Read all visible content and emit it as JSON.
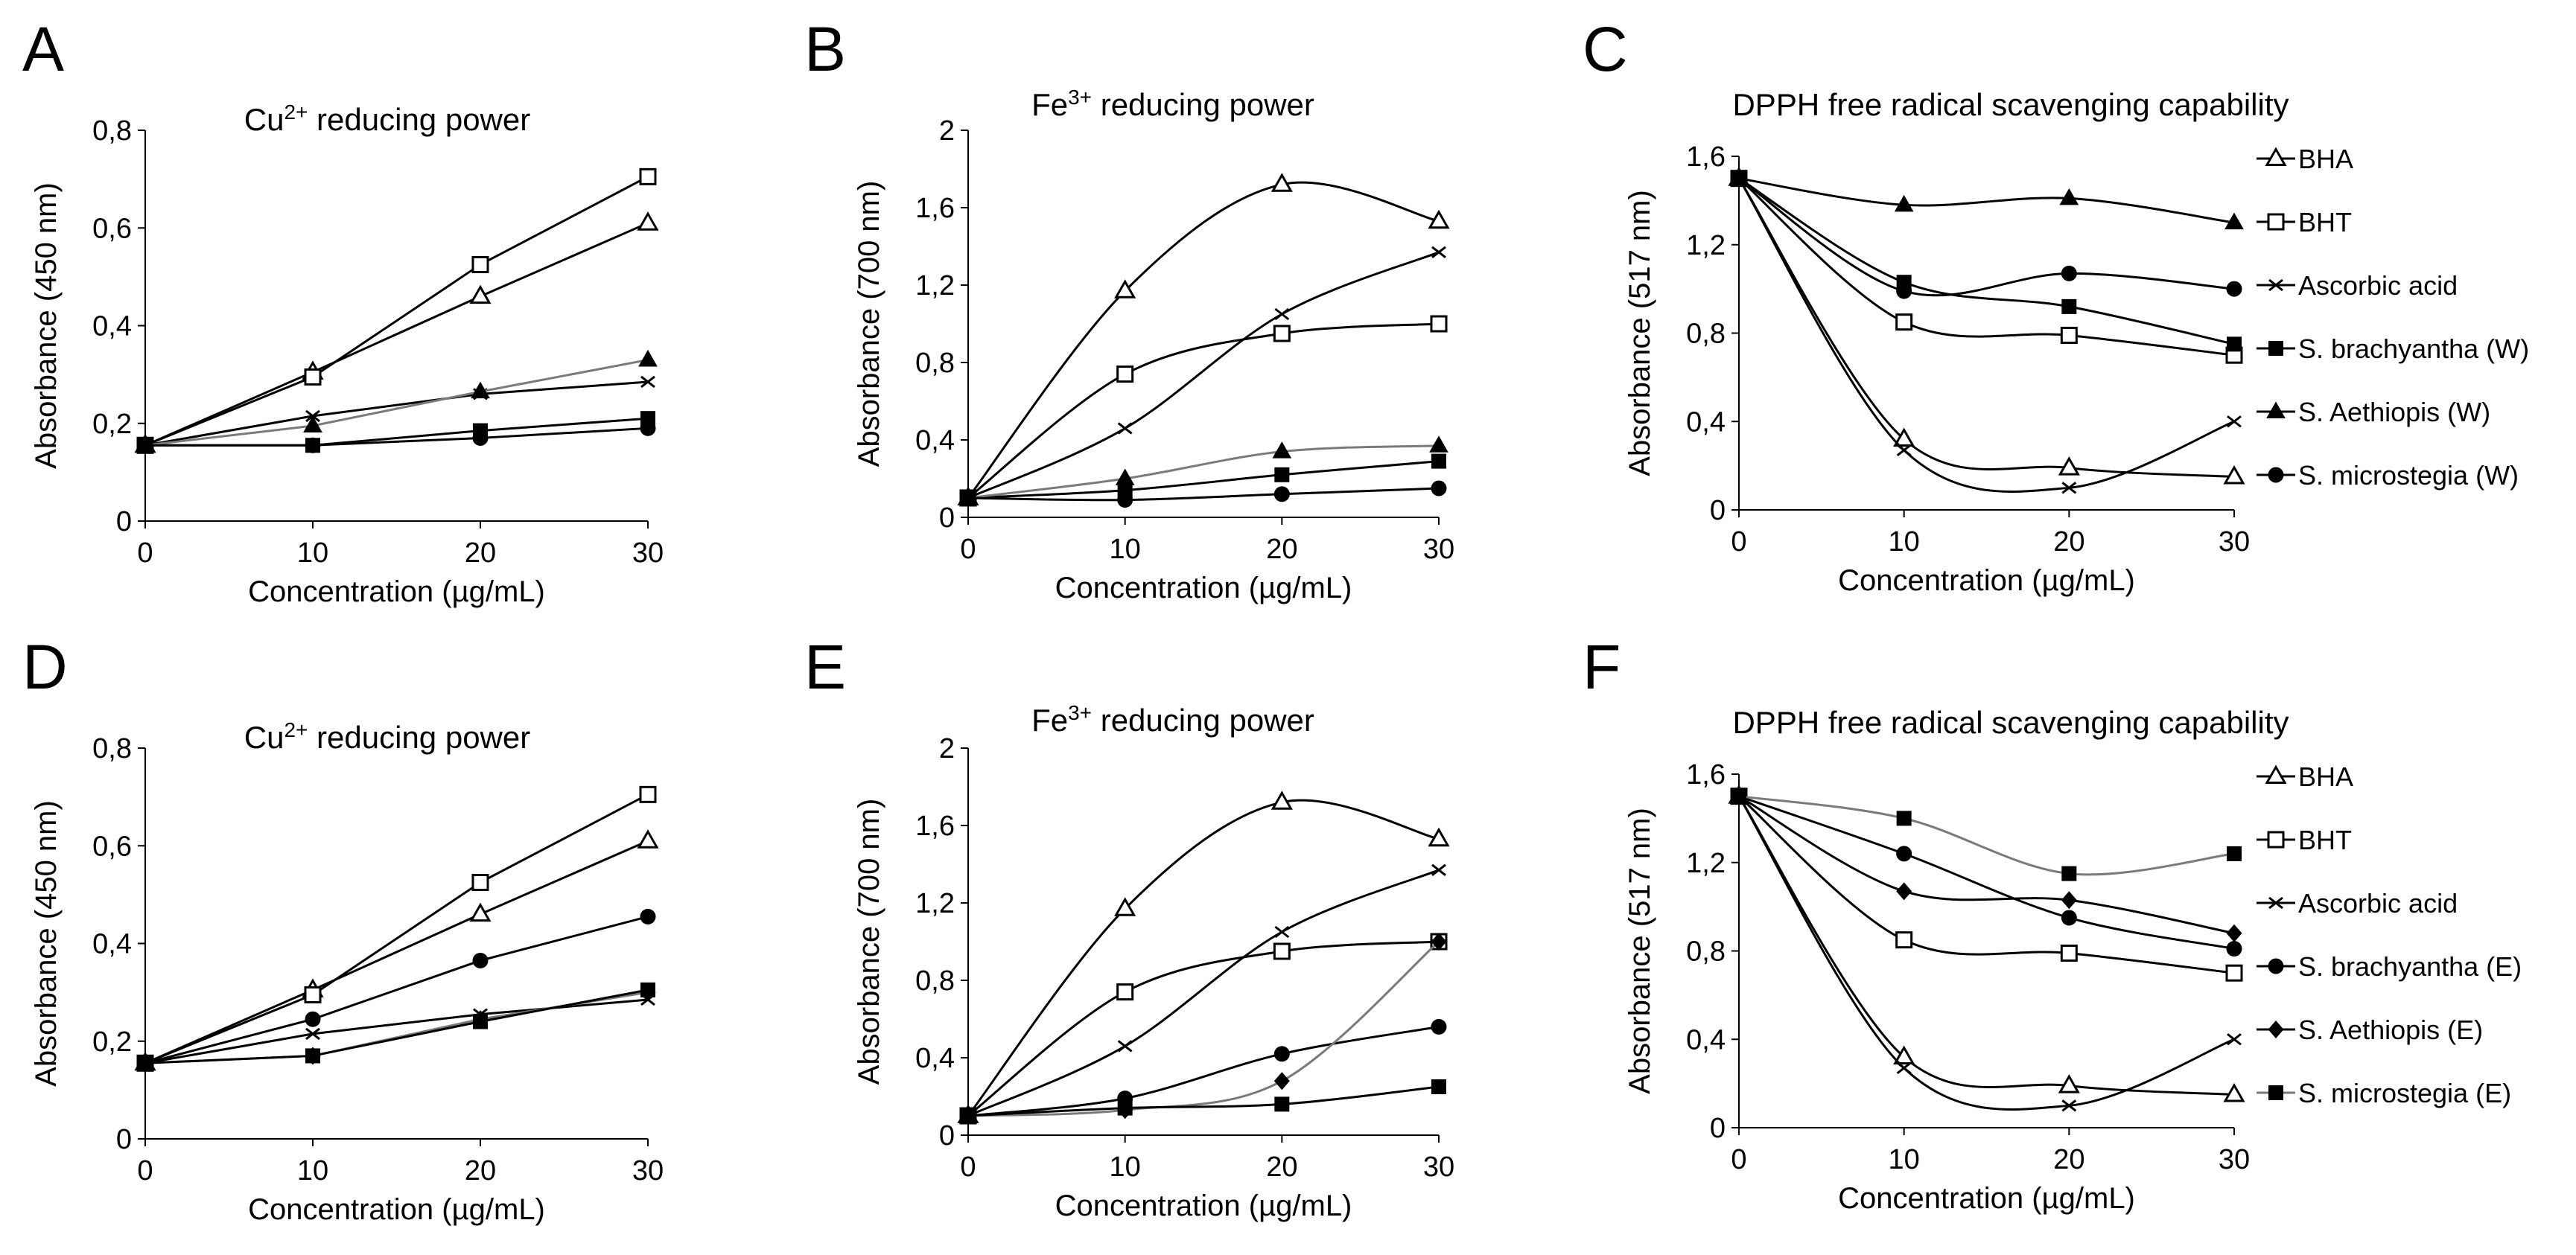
{
  "figure": {
    "background": "#ffffff",
    "line_color": "#000000",
    "light_line_color": "#7a7a7a"
  },
  "chart_data": [
    {
      "panel": "A",
      "type": "line",
      "title": {
        "base": "Cu",
        "sup": "2+",
        "rest": " reducing power"
      },
      "xlabel": "Concentration (µg/mL)",
      "ylabel": "Absorbance (450 nm)",
      "x": [
        0,
        10,
        20,
        30
      ],
      "xlim": [
        0,
        30
      ],
      "ylim": [
        0,
        0.8
      ],
      "xticks": [
        0,
        10,
        20,
        30
      ],
      "xtick_labels": [
        "0",
        "10",
        "20",
        "30"
      ],
      "yticks": [
        0,
        0.2,
        0.4,
        0.6,
        0.8
      ],
      "ytick_labels": [
        "0",
        "0,2",
        "0,4",
        "0,6",
        "0,8"
      ],
      "legend": false,
      "series": [
        {
          "name": "BHA",
          "marker": "triangle-open",
          "color": "#000000",
          "curve": "linear",
          "values": [
            0.155,
            0.305,
            0.46,
            0.61
          ]
        },
        {
          "name": "BHT",
          "marker": "square-open",
          "color": "#000000",
          "curve": "linear",
          "values": [
            0.155,
            0.295,
            0.525,
            0.705
          ]
        },
        {
          "name": "Ascorbic acid",
          "marker": "x",
          "color": "#000000",
          "curve": "linear",
          "values": [
            0.155,
            0.215,
            0.26,
            0.285
          ]
        },
        {
          "name": "S. brachyantha (W)",
          "marker": "square-filled",
          "color": "#000000",
          "curve": "linear",
          "values": [
            0.155,
            0.155,
            0.185,
            0.21
          ]
        },
        {
          "name": "S. Aethiopis (W)",
          "marker": "triangle-filled",
          "color": "#7a7a7a",
          "curve": "linear",
          "values": [
            0.155,
            0.195,
            0.265,
            0.33
          ]
        },
        {
          "name": "S. microstegia (W)",
          "marker": "circle-filled",
          "color": "#000000",
          "curve": "linear",
          "values": [
            0.155,
            0.155,
            0.17,
            0.19
          ]
        }
      ]
    },
    {
      "panel": "B",
      "type": "line",
      "title": {
        "base": "Fe",
        "sup": "3+",
        "rest": " reducing power"
      },
      "xlabel": "Concentration (µg/mL)",
      "ylabel": "Absorbance (700 nm)",
      "x": [
        0,
        10,
        20,
        30
      ],
      "xlim": [
        0,
        30
      ],
      "ylim": [
        0,
        2
      ],
      "xticks": [
        0,
        10,
        20,
        30
      ],
      "xtick_labels": [
        "0",
        "10",
        "20",
        "30"
      ],
      "yticks": [
        0,
        0.4,
        0.8,
        1.2,
        1.6,
        2
      ],
      "ytick_labels": [
        "0",
        "0,4",
        "0,8",
        "1,2",
        "1,6",
        "2"
      ],
      "legend": false,
      "series": [
        {
          "name": "BHA",
          "marker": "triangle-open",
          "color": "#000000",
          "curve": "smooth",
          "values": [
            0.1,
            1.17,
            1.72,
            1.53
          ]
        },
        {
          "name": "BHT",
          "marker": "square-open",
          "color": "#000000",
          "curve": "smooth",
          "values": [
            0.1,
            0.74,
            0.95,
            1.0
          ]
        },
        {
          "name": "Ascorbic acid",
          "marker": "x",
          "color": "#000000",
          "curve": "smooth",
          "values": [
            0.1,
            0.46,
            1.05,
            1.37
          ]
        },
        {
          "name": "S. brachyantha (W)",
          "marker": "square-filled",
          "color": "#000000",
          "curve": "smooth",
          "values": [
            0.1,
            0.14,
            0.22,
            0.29
          ]
        },
        {
          "name": "S. Aethiopis (W)",
          "marker": "triangle-filled",
          "color": "#7a7a7a",
          "curve": "smooth",
          "values": [
            0.1,
            0.2,
            0.34,
            0.37
          ]
        },
        {
          "name": "S. microstegia (W)",
          "marker": "circle-filled",
          "color": "#000000",
          "curve": "smooth",
          "values": [
            0.1,
            0.09,
            0.12,
            0.15
          ]
        }
      ]
    },
    {
      "panel": "C",
      "type": "line",
      "title": {
        "base": "DPPH free radical scavenging capability",
        "sup": "",
        "rest": ""
      },
      "xlabel": "Concentration (µg/mL)",
      "ylabel": "Absorbance (517 nm)",
      "x": [
        0,
        10,
        20,
        30
      ],
      "xlim": [
        0,
        30
      ],
      "ylim": [
        0,
        1.6
      ],
      "xticks": [
        0,
        10,
        20,
        30
      ],
      "xtick_labels": [
        "0",
        "10",
        "20",
        "30"
      ],
      "yticks": [
        0,
        0.4,
        0.8,
        1.2,
        1.6
      ],
      "ytick_labels": [
        "0",
        "0,4",
        "0,8",
        "1,2",
        "1,6"
      ],
      "legend": true,
      "series": [
        {
          "name": "BHA",
          "marker": "triangle-open",
          "color": "#000000",
          "curve": "smooth",
          "values": [
            1.5,
            0.32,
            0.19,
            0.15
          ]
        },
        {
          "name": "BHT",
          "marker": "square-open",
          "color": "#000000",
          "curve": "smooth",
          "values": [
            1.5,
            0.85,
            0.79,
            0.7
          ]
        },
        {
          "name": "Ascorbic acid",
          "marker": "x",
          "color": "#000000",
          "curve": "smooth",
          "values": [
            1.5,
            0.27,
            0.1,
            0.4
          ]
        },
        {
          "name": "S. brachyantha (W)",
          "marker": "square-filled",
          "color": "#000000",
          "curve": "smooth",
          "values": [
            1.5,
            1.03,
            0.92,
            0.75
          ]
        },
        {
          "name": "S. Aethiopis (W)",
          "marker": "triangle-filled",
          "color": "#000000",
          "curve": "smooth",
          "values": [
            1.5,
            1.38,
            1.41,
            1.3
          ]
        },
        {
          "name": "S. microstegia (W)",
          "marker": "circle-filled",
          "color": "#000000",
          "curve": "smooth",
          "values": [
            1.5,
            0.99,
            1.07,
            1.0
          ]
        }
      ]
    },
    {
      "panel": "D",
      "type": "line",
      "title": {
        "base": "Cu",
        "sup": "2+",
        "rest": " reducing power"
      },
      "xlabel": "Concentration (µg/mL)",
      "ylabel": "Absorbance (450 nm)",
      "x": [
        0,
        10,
        20,
        30
      ],
      "xlim": [
        0,
        30
      ],
      "ylim": [
        0,
        0.8
      ],
      "xticks": [
        0,
        10,
        20,
        30
      ],
      "xtick_labels": [
        "0",
        "10",
        "20",
        "30"
      ],
      "yticks": [
        0,
        0.2,
        0.4,
        0.6,
        0.8
      ],
      "ytick_labels": [
        "0",
        "0,2",
        "0,4",
        "0,6",
        "0,8"
      ],
      "legend": false,
      "series": [
        {
          "name": "BHA",
          "marker": "triangle-open",
          "color": "#000000",
          "curve": "linear",
          "values": [
            0.155,
            0.305,
            0.46,
            0.61
          ]
        },
        {
          "name": "BHT",
          "marker": "square-open",
          "color": "#000000",
          "curve": "linear",
          "values": [
            0.155,
            0.295,
            0.525,
            0.705
          ]
        },
        {
          "name": "Ascorbic acid",
          "marker": "x",
          "color": "#000000",
          "curve": "linear",
          "values": [
            0.155,
            0.215,
            0.255,
            0.285
          ]
        },
        {
          "name": "S. brachyantha (E)",
          "marker": "circle-filled",
          "color": "#000000",
          "curve": "linear",
          "values": [
            0.155,
            0.245,
            0.365,
            0.455
          ]
        },
        {
          "name": "S. Aethiopis (E)",
          "marker": "diamond-filled",
          "color": "#7a7a7a",
          "curve": "linear",
          "values": [
            0.155,
            0.17,
            0.245,
            0.3
          ]
        },
        {
          "name": "S. microstegia (E)",
          "marker": "square-filled",
          "color": "#000000",
          "curve": "linear",
          "values": [
            0.155,
            0.17,
            0.24,
            0.305
          ]
        }
      ]
    },
    {
      "panel": "E",
      "type": "line",
      "title": {
        "base": "Fe",
        "sup": "3+",
        "rest": " reducing power"
      },
      "xlabel": "Concentration (µg/mL)",
      "ylabel": "Absorbance (700 nm)",
      "x": [
        0,
        10,
        20,
        30
      ],
      "xlim": [
        0,
        30
      ],
      "ylim": [
        0,
        2
      ],
      "xticks": [
        0,
        10,
        20,
        30
      ],
      "xtick_labels": [
        "0",
        "10",
        "20",
        "30"
      ],
      "yticks": [
        0,
        0.4,
        0.8,
        1.2,
        1.6,
        2
      ],
      "ytick_labels": [
        "0",
        "0,4",
        "0,8",
        "1,2",
        "1,6",
        "2"
      ],
      "legend": false,
      "series": [
        {
          "name": "BHA",
          "marker": "triangle-open",
          "color": "#000000",
          "curve": "smooth",
          "values": [
            0.1,
            1.17,
            1.72,
            1.53
          ]
        },
        {
          "name": "BHT",
          "marker": "square-open",
          "color": "#000000",
          "curve": "smooth",
          "values": [
            0.1,
            0.74,
            0.95,
            1.0
          ]
        },
        {
          "name": "Ascorbic acid",
          "marker": "x",
          "color": "#000000",
          "curve": "smooth",
          "values": [
            0.1,
            0.46,
            1.05,
            1.37
          ]
        },
        {
          "name": "S. brachyantha (E)",
          "marker": "circle-filled",
          "color": "#000000",
          "curve": "smooth",
          "values": [
            0.1,
            0.19,
            0.42,
            0.56
          ]
        },
        {
          "name": "S. Aethiopis (E)",
          "marker": "diamond-filled",
          "color": "#7a7a7a",
          "curve": "smooth",
          "values": [
            0.1,
            0.13,
            0.28,
            1.0
          ]
        },
        {
          "name": "S. microstegia (E)",
          "marker": "square-filled",
          "color": "#000000",
          "curve": "smooth",
          "values": [
            0.1,
            0.14,
            0.16,
            0.25
          ]
        }
      ]
    },
    {
      "panel": "F",
      "type": "line",
      "title": {
        "base": "DPPH free radical scavenging capability",
        "sup": "",
        "rest": ""
      },
      "xlabel": "Concentration (µg/mL)",
      "ylabel": "Absorbance (517 nm)",
      "x": [
        0,
        10,
        20,
        30
      ],
      "xlim": [
        0,
        30
      ],
      "ylim": [
        0,
        1.6
      ],
      "xticks": [
        0,
        10,
        20,
        30
      ],
      "xtick_labels": [
        "0",
        "10",
        "20",
        "30"
      ],
      "yticks": [
        0,
        0.4,
        0.8,
        1.2,
        1.6
      ],
      "ytick_labels": [
        "0",
        "0,4",
        "0,8",
        "1,2",
        "1,6"
      ],
      "legend": true,
      "series": [
        {
          "name": "BHA",
          "marker": "triangle-open",
          "color": "#000000",
          "curve": "smooth",
          "values": [
            1.5,
            0.32,
            0.19,
            0.15
          ]
        },
        {
          "name": "BHT",
          "marker": "square-open",
          "color": "#000000",
          "curve": "smooth",
          "values": [
            1.5,
            0.85,
            0.79,
            0.7
          ]
        },
        {
          "name": "Ascorbic acid",
          "marker": "x",
          "color": "#000000",
          "curve": "smooth",
          "values": [
            1.5,
            0.27,
            0.1,
            0.4
          ]
        },
        {
          "name": "S. brachyantha (E)",
          "marker": "circle-filled",
          "color": "#000000",
          "curve": "smooth",
          "values": [
            1.5,
            1.24,
            0.95,
            0.81
          ]
        },
        {
          "name": "S. Aethiopis (E)",
          "marker": "diamond-filled",
          "color": "#000000",
          "curve": "smooth",
          "values": [
            1.5,
            1.07,
            1.03,
            0.88
          ]
        },
        {
          "name": "S. microstegia (E)",
          "marker": "square-filled",
          "color": "#7a7a7a",
          "curve": "smooth",
          "values": [
            1.5,
            1.4,
            1.15,
            1.24
          ]
        }
      ]
    }
  ]
}
